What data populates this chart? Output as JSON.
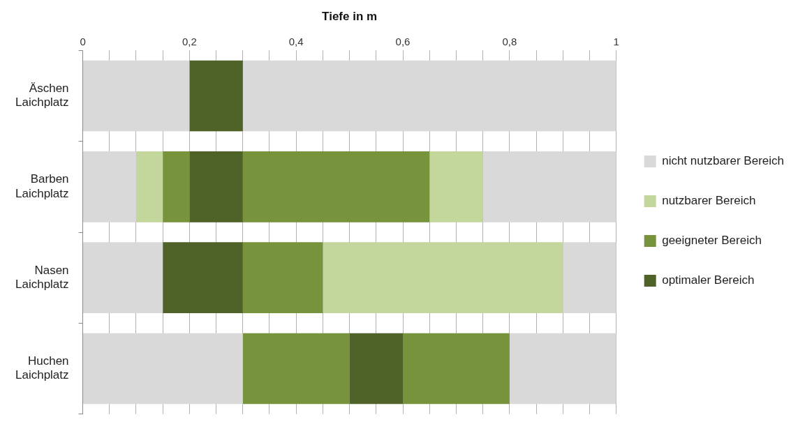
{
  "chart_data": {
    "type": "bar",
    "orientation": "horizontal",
    "stacked": true,
    "xlabel": "Tiefe in m",
    "categories": [
      "Äschen Laichplatz",
      "Barben Laichplatz",
      "Nasen Laichplatz",
      "Huchen Laichplatz"
    ],
    "series": [
      {
        "name": "nicht nutzbarer Bereich",
        "color": "#d9d9d9",
        "values": [
          0.2,
          0.1,
          0.15,
          0.3
        ]
      },
      {
        "name": "nutzbarer Bereich",
        "color": "#c3d69b",
        "values": [
          null,
          0.05,
          null,
          null
        ]
      },
      {
        "name": "geeigneter Bereich",
        "color": "#77933c",
        "values": [
          null,
          0.05,
          null,
          0.2
        ]
      },
      {
        "name": "optimaler Bereich",
        "color": "#4f6228",
        "values": [
          0.1,
          0.1,
          0.15,
          0.1
        ]
      },
      {
        "color": "#77933c",
        "values": [
          null,
          0.35,
          0.15,
          0.2
        ]
      },
      {
        "color": "#c3d69b",
        "values": [
          null,
          0.1,
          0.45,
          null
        ]
      },
      {
        "color": "#d9d9d9",
        "values": [
          0.7,
          0.25,
          0.1,
          0.2
        ]
      }
    ],
    "xlim": [
      0,
      1
    ],
    "xticks": [
      0,
      {
        "value": 0.05,
        "label": null
      },
      {
        "value": 0.1,
        "label": null
      },
      {
        "value": 0.15,
        "label": null
      },
      {
        "value": 0.2,
        "label": "0,2"
      },
      {
        "value": 0.25,
        "label": null
      },
      {
        "value": 0.3,
        "label": null
      },
      {
        "value": 0.35,
        "label": null
      },
      {
        "value": 0.4,
        "label": "0,4"
      },
      {
        "value": 0.45,
        "label": null
      },
      {
        "value": 0.5,
        "label": null
      },
      {
        "value": 0.55,
        "label": null
      },
      {
        "value": 0.6,
        "label": "0,6"
      },
      {
        "value": 0.65,
        "label": null
      },
      {
        "value": 0.7,
        "label": null
      },
      {
        "value": 0.75,
        "label": null
      },
      {
        "value": 0.8,
        "label": "0,8"
      },
      {
        "value": 0.85,
        "label": null
      },
      {
        "value": 0.9,
        "label": null
      },
      {
        "value": 0.95,
        "label": null
      },
      1
    ],
    "grid": "x",
    "legend": "right"
  }
}
